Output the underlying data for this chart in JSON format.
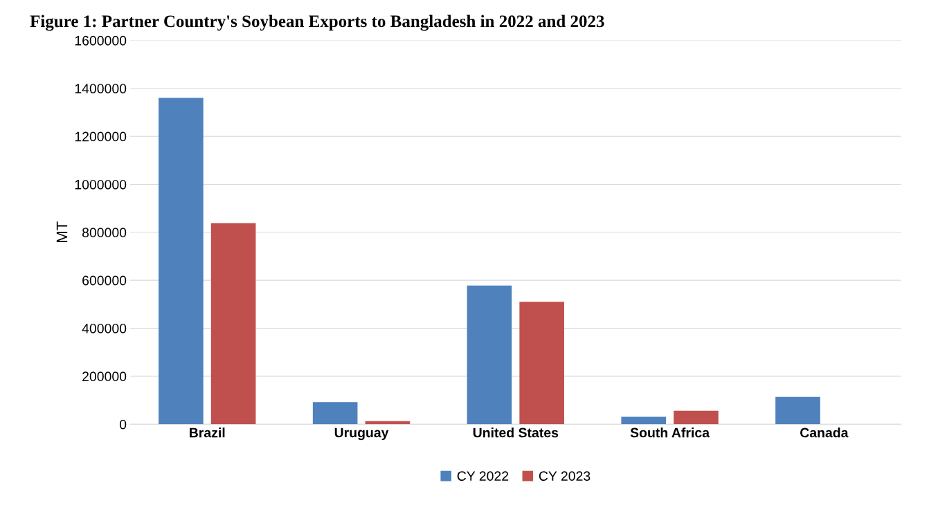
{
  "chart_data": {
    "type": "bar",
    "title": "Figure 1: Partner Country's Soybean Exports to Bangladesh in 2022 and 2023",
    "ylabel": "MT",
    "categories": [
      "Brazil",
      "Uruguay",
      "United States",
      "South Africa",
      "Canada"
    ],
    "series": [
      {
        "name": "CY 2022",
        "color": "#4f81bd",
        "values": [
          1360000,
          92000,
          578000,
          31000,
          114000
        ]
      },
      {
        "name": "CY 2023",
        "color": "#c0504d",
        "values": [
          838000,
          13000,
          510000,
          56000,
          0
        ]
      }
    ],
    "ylim": [
      0,
      1600000
    ],
    "yticks": [
      0,
      200000,
      400000,
      600000,
      800000,
      1000000,
      1200000,
      1400000,
      1600000
    ],
    "grid": "y",
    "legend": "bottom"
  }
}
